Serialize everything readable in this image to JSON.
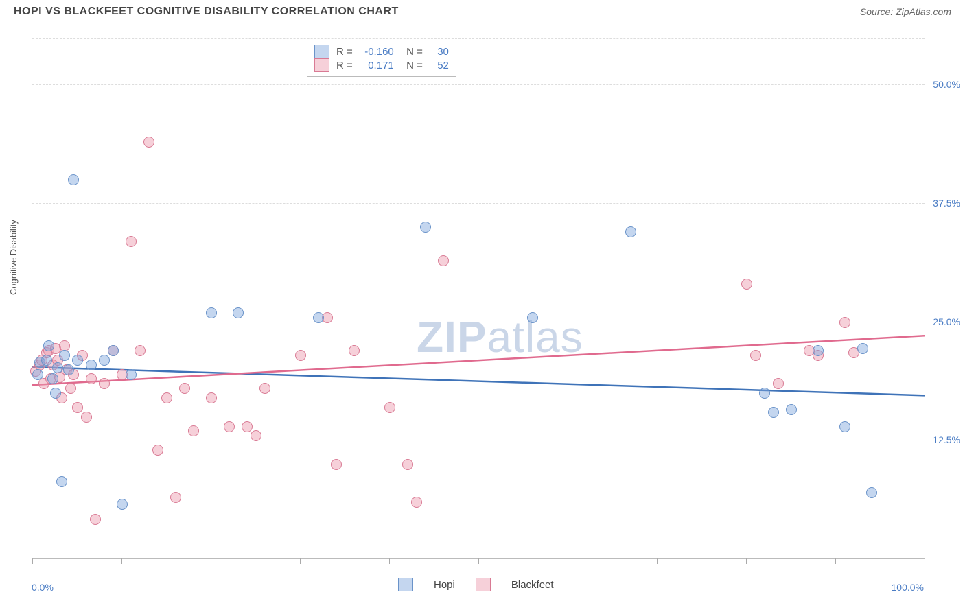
{
  "header": {
    "title": "HOPI VS BLACKFEET COGNITIVE DISABILITY CORRELATION CHART",
    "source": "Source: ZipAtlas.com"
  },
  "chart": {
    "type": "scatter",
    "ylabel": "Cognitive Disability",
    "xlim": [
      0,
      100
    ],
    "ylim": [
      0,
      55
    ],
    "xticks": [
      0,
      10,
      20,
      30,
      40,
      50,
      60,
      70,
      80,
      90,
      100
    ],
    "yticks": [
      {
        "v": 12.5,
        "label": "12.5%"
      },
      {
        "v": 25.0,
        "label": "25.0%"
      },
      {
        "v": 37.5,
        "label": "37.5%"
      },
      {
        "v": 50.0,
        "label": "50.0%"
      }
    ],
    "xlabels": {
      "min": "0.0%",
      "max": "100.0%"
    },
    "watermark": {
      "bold": "ZIP",
      "rest": "atlas"
    },
    "background_color": "#ffffff",
    "grid_color": "#dddddd",
    "axis_color": "#bbbbbb",
    "label_color": "#4a7cc4",
    "series": {
      "hopi": {
        "label": "Hopi",
        "fill": "rgba(125,165,220,0.45)",
        "stroke": "#6a93c9",
        "line_color": "#3f73b8",
        "R": "-0.160",
        "N": "30",
        "trend": {
          "y_at_x0": 20.2,
          "y_at_x100": 17.2
        },
        "points": [
          [
            0.5,
            19.5
          ],
          [
            0.8,
            20.8
          ],
          [
            1.5,
            21
          ],
          [
            1.8,
            22.5
          ],
          [
            2.2,
            19
          ],
          [
            2.5,
            17.5
          ],
          [
            2.8,
            20.2
          ],
          [
            3.2,
            8.2
          ],
          [
            3.5,
            21.5
          ],
          [
            4,
            20
          ],
          [
            4.5,
            40
          ],
          [
            5,
            21
          ],
          [
            6.5,
            20.5
          ],
          [
            8,
            21
          ],
          [
            9,
            22
          ],
          [
            10,
            5.8
          ],
          [
            11,
            19.5
          ],
          [
            20,
            26
          ],
          [
            23,
            26
          ],
          [
            32,
            25.5
          ],
          [
            44,
            35
          ],
          [
            56,
            25.5
          ],
          [
            67,
            34.5
          ],
          [
            82,
            17.5
          ],
          [
            83,
            15.5
          ],
          [
            85,
            15.8
          ],
          [
            88,
            22
          ],
          [
            91,
            14
          ],
          [
            93,
            22.2
          ],
          [
            94,
            7
          ]
        ]
      },
      "blackfeet": {
        "label": "Blackfeet",
        "fill": "rgba(235,150,170,0.45)",
        "stroke": "#d97a94",
        "line_color": "#e06a8e",
        "R": "0.171",
        "N": "52",
        "trend": {
          "y_at_x0": 18.3,
          "y_at_x100": 23.5
        },
        "points": [
          [
            0.3,
            19.8
          ],
          [
            0.8,
            20.5
          ],
          [
            1,
            21
          ],
          [
            1.2,
            18.5
          ],
          [
            1.5,
            21.8
          ],
          [
            1.8,
            22
          ],
          [
            2,
            19
          ],
          [
            2.2,
            20.5
          ],
          [
            2.5,
            22.2
          ],
          [
            2.8,
            21
          ],
          [
            3,
            19.2
          ],
          [
            3.2,
            17
          ],
          [
            3.5,
            22.5
          ],
          [
            3.8,
            20
          ],
          [
            4.2,
            18
          ],
          [
            4.5,
            19.5
          ],
          [
            5,
            16
          ],
          [
            5.5,
            21.5
          ],
          [
            6,
            15
          ],
          [
            6.5,
            19
          ],
          [
            7,
            4.2
          ],
          [
            8,
            18.5
          ],
          [
            9,
            22
          ],
          [
            10,
            19.5
          ],
          [
            11,
            33.5
          ],
          [
            12,
            22
          ],
          [
            13,
            44
          ],
          [
            14,
            11.5
          ],
          [
            15,
            17
          ],
          [
            16,
            6.5
          ],
          [
            17,
            18
          ],
          [
            18,
            13.5
          ],
          [
            20,
            17
          ],
          [
            22,
            14
          ],
          [
            24,
            14
          ],
          [
            25,
            13
          ],
          [
            26,
            18
          ],
          [
            30,
            21.5
          ],
          [
            33,
            25.5
          ],
          [
            34,
            10
          ],
          [
            36,
            22
          ],
          [
            40,
            16
          ],
          [
            42,
            10
          ],
          [
            43,
            6
          ],
          [
            46,
            31.5
          ],
          [
            81,
            21.5
          ],
          [
            83.5,
            18.5
          ],
          [
            80,
            29
          ],
          [
            87,
            22
          ],
          [
            88,
            21.5
          ],
          [
            91,
            25
          ],
          [
            92,
            21.8
          ]
        ]
      }
    }
  },
  "legend": {
    "s1": "Hopi",
    "s2": "Blackfeet"
  }
}
